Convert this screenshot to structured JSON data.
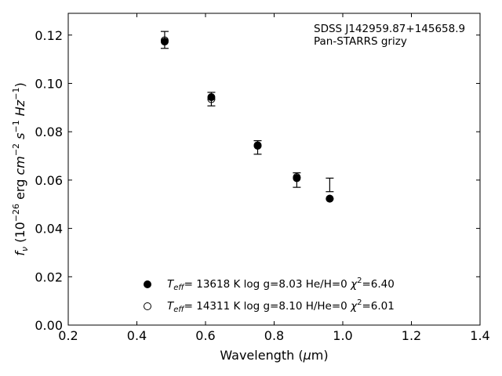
{
  "chart_data": {
    "type": "scatter",
    "xlabel": "Wavelength (μm)",
    "ylabel": "f_ν (10^-26 erg cm^-2 s^-1 Hz^-1)",
    "xlim": [
      0.2,
      1.4
    ],
    "ylim": [
      0.0,
      0.129
    ],
    "xticks": [
      0.2,
      0.4,
      0.6,
      0.8,
      1.0,
      1.2,
      1.4
    ],
    "xtick_labels": [
      "0.2",
      "0.4",
      "0.6",
      "0.8",
      "1.0",
      "1.2",
      "1.4"
    ],
    "yticks": [
      0.0,
      0.02,
      0.04,
      0.06,
      0.08,
      0.1,
      0.12
    ],
    "ytick_labels": [
      "0.00",
      "0.02",
      "0.04",
      "0.06",
      "0.08",
      "0.10",
      "0.12"
    ],
    "annotation": [
      "SDSS J142959.87+145658.9",
      "Pan-STARRS grizy"
    ],
    "observed": {
      "x": [
        0.481,
        0.617,
        0.752,
        0.866,
        0.962
      ],
      "y": [
        0.118,
        0.0935,
        0.0735,
        0.06,
        0.058
      ],
      "yerr": [
        0.0035,
        0.0028,
        0.0028,
        0.003,
        0.0028
      ]
    },
    "series": [
      {
        "name": "Teff= 13618 K  log g=8.03  He/H=0  χ²=6.40",
        "marker": "filled-circle",
        "x": [
          0.481,
          0.617,
          0.752,
          0.866,
          0.962
        ],
        "y": [
          0.1173,
          0.0943,
          0.0744,
          0.0608,
          0.0523
        ]
      },
      {
        "name": "Teff= 14311 K  log g=8.10  H/He=0  χ²=6.01",
        "marker": "open-circle",
        "x": [
          0.481,
          0.617,
          0.752,
          0.866,
          0.962
        ],
        "y": [
          0.1178,
          0.0935,
          0.0742,
          0.0612,
          0.0523
        ]
      }
    ],
    "legend_placement": "bottom-center",
    "legend": [
      {
        "teff": "= 13618 K  log g=8.03  He/H=0  ",
        "chi": "=6.40"
      },
      {
        "teff": "= 14311 K  log g=8.10  H/He=0  ",
        "chi": "=6.01"
      }
    ],
    "grid": false
  }
}
